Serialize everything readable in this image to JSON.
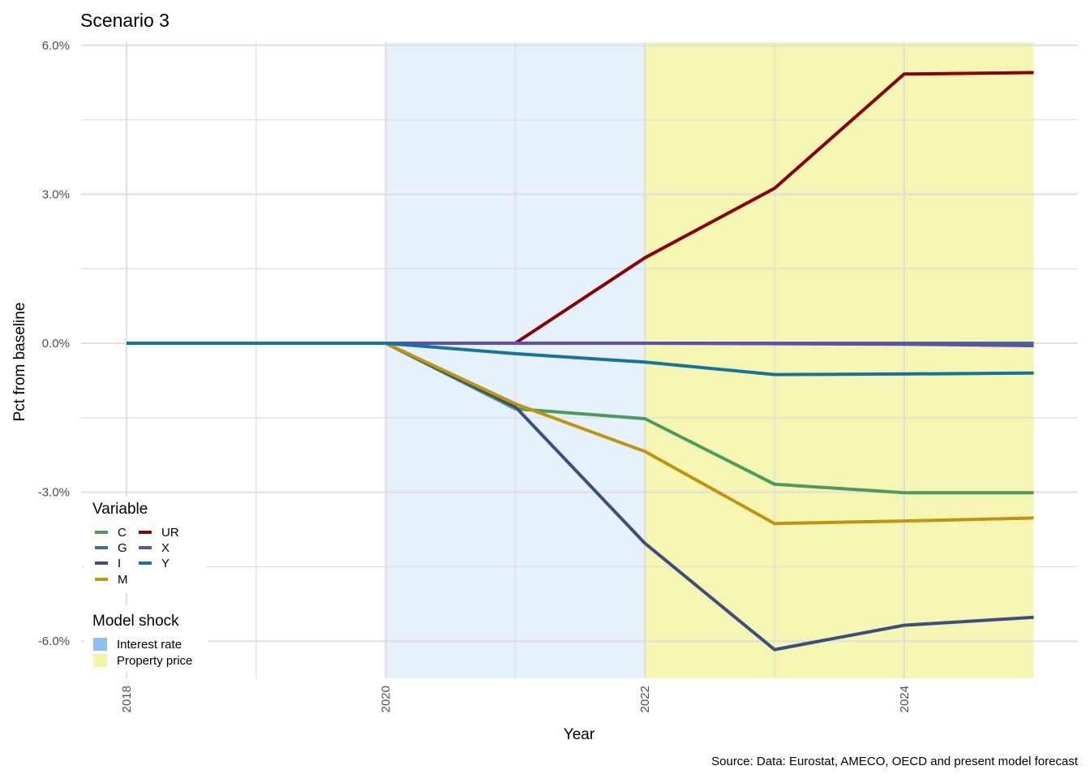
{
  "chart_data": {
    "type": "line",
    "title": "Scenario 3",
    "xlabel": "Year",
    "ylabel": "Pct from baseline",
    "caption": "Source: Data: Eurostat, AMECO, OECD and present model forecast",
    "xlim": [
      2018,
      2025
    ],
    "ylim": [
      -6.7,
      6.0
    ],
    "x_ticks": [
      2018,
      2020,
      2022,
      2024
    ],
    "x_tick_labels": [
      "2018",
      "2020",
      "2022",
      "2024"
    ],
    "y_ticks": [
      6,
      3,
      0,
      -3,
      -6
    ],
    "y_tick_labels": [
      "6.0%",
      "3.0%",
      "0.0%",
      "-3.0%",
      "-6.0%"
    ],
    "grid": true,
    "x": [
      2018,
      2019,
      2020,
      2021,
      2022,
      2023,
      2024,
      2025
    ],
    "series": [
      {
        "name": "C",
        "color": "#4d9a5d",
        "values": [
          0,
          0,
          0,
          -1.32,
          -1.52,
          -2.84,
          -3.01,
          -3.01
        ]
      },
      {
        "name": "G",
        "color": "#3f6e8f",
        "values": [
          0,
          0,
          0,
          0,
          0,
          0,
          0,
          0
        ]
      },
      {
        "name": "I",
        "color": "#3b4e7e",
        "values": [
          0,
          0,
          0,
          -1.28,
          -4.03,
          -6.17,
          -5.68,
          -5.52
        ]
      },
      {
        "name": "M",
        "color": "#c1940f",
        "values": [
          0,
          0,
          0,
          -1.22,
          -2.18,
          -3.63,
          -3.58,
          -3.52
        ]
      },
      {
        "name": "UR",
        "color": "#8b0000",
        "values": [
          0,
          0,
          0,
          0,
          1.72,
          3.12,
          5.42,
          5.45
        ]
      },
      {
        "name": "X",
        "color": "#5d4fb3",
        "values": [
          0,
          0,
          0,
          0,
          0,
          -0.01,
          -0.02,
          -0.05
        ]
      },
      {
        "name": "Y",
        "color": "#16739e",
        "values": [
          0,
          0,
          0,
          -0.21,
          -0.38,
          -0.63,
          -0.62,
          -0.6
        ]
      }
    ],
    "shocks": [
      {
        "name": "Interest rate",
        "color": "#8dc0f0",
        "from": 2020,
        "to": 2022
      },
      {
        "name": "Property price",
        "color": "#f3f5a6",
        "from": 2022,
        "to": 2025
      }
    ],
    "legend": {
      "placement": "bottom-left",
      "variable_title": "Variable",
      "shock_title": "Model shock"
    }
  }
}
